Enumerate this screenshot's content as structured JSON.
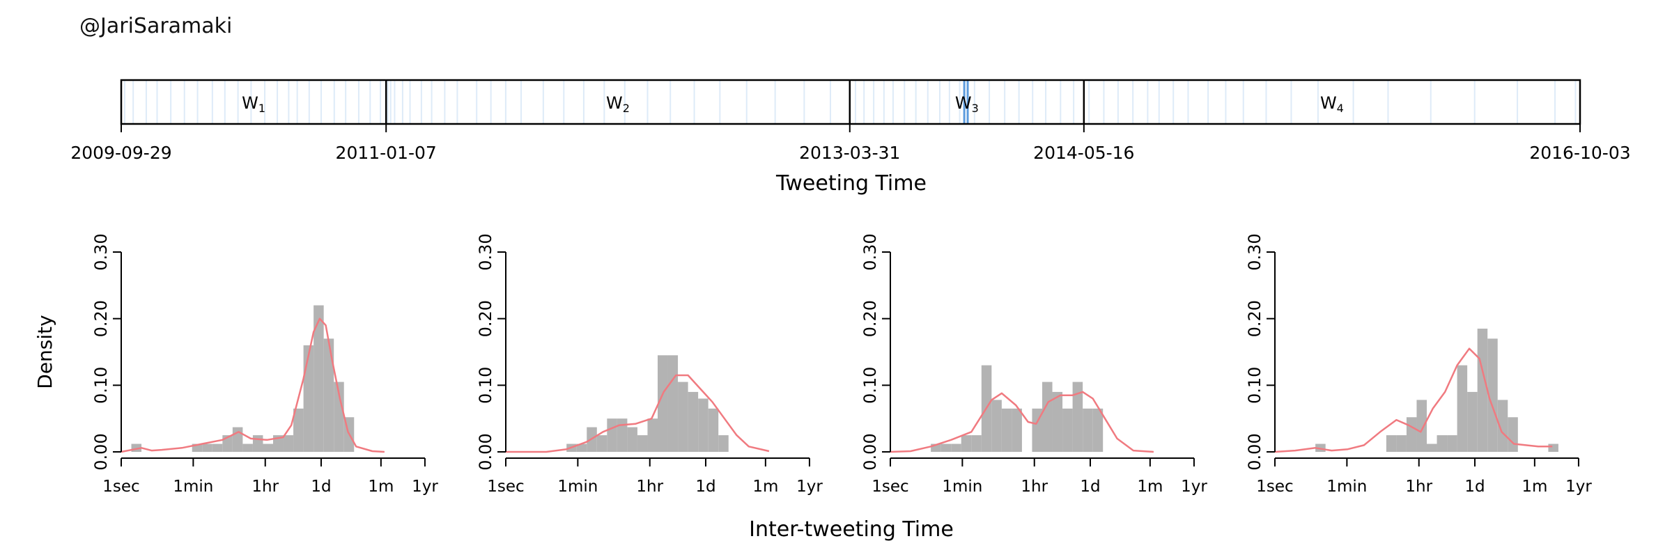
{
  "header": {
    "handle": "@JariSaramaki"
  },
  "colors": {
    "bar": "#b3b3b3",
    "density": "#f07a80",
    "tick_line": "#4a90d9",
    "axis": "#000000"
  },
  "chart_data": [
    {
      "type": "timeline",
      "xlabel": "Tweeting Time",
      "dates": [
        "2009-09-29",
        "2011-01-07",
        "2013-03-31",
        "2014-05-16",
        "2016-10-03"
      ],
      "windows": [
        {
          "label": "W",
          "sub": "1",
          "start": "2009-09-29",
          "end": "2011-01-07"
        },
        {
          "label": "W",
          "sub": "2",
          "start": "2011-01-07",
          "end": "2013-03-31"
        },
        {
          "label": "W",
          "sub": "3",
          "start": "2013-03-31",
          "end": "2014-05-16"
        },
        {
          "label": "W",
          "sub": "4",
          "start": "2014-05-16",
          "end": "2016-10-03"
        }
      ],
      "tweet_dates": [
        "2009-10-05",
        "2009-10-20",
        "2009-11-12",
        "2009-12-01",
        "2009-12-25",
        "2010-01-18",
        "2010-02-10",
        "2010-03-08",
        "2010-03-30",
        "2010-04-22",
        "2010-05-15",
        "2010-06-08",
        "2010-06-30",
        "2010-07-20",
        "2010-08-04",
        "2010-08-25",
        "2010-09-15",
        "2010-10-08",
        "2010-10-28",
        "2010-11-20",
        "2010-12-10",
        "2010-12-28",
        "2011-01-10",
        "2011-01-15",
        "2011-01-22",
        "2011-02-05",
        "2011-02-18",
        "2011-03-10",
        "2011-03-28",
        "2011-04-20",
        "2011-05-12",
        "2011-06-15",
        "2011-07-10",
        "2011-08-05",
        "2011-09-01",
        "2011-10-10",
        "2011-11-15",
        "2011-12-20",
        "2012-01-25",
        "2012-03-01",
        "2012-04-10",
        "2012-05-20",
        "2012-07-01",
        "2012-08-15",
        "2012-10-01",
        "2012-11-20",
        "2013-01-10",
        "2013-02-25",
        "2013-04-10",
        "2013-04-25",
        "2013-05-12",
        "2013-05-30",
        "2013-06-15",
        "2013-07-05",
        "2013-07-25",
        "2013-08-15",
        "2013-09-05",
        "2013-09-22",
        "2013-10-10",
        "2013-10-18",
        "2013-10-24",
        "2013-11-05",
        "2013-12-01",
        "2013-12-28",
        "2014-01-22",
        "2014-02-15",
        "2014-03-10",
        "2014-04-05",
        "2014-04-28",
        "2014-05-25",
        "2014-06-20",
        "2014-07-15",
        "2014-08-10",
        "2014-09-05",
        "2014-09-25",
        "2014-10-20",
        "2014-11-15",
        "2014-12-20",
        "2015-01-20",
        "2015-02-20",
        "2015-04-01",
        "2015-05-15",
        "2015-07-01",
        "2015-09-01",
        "2015-11-01",
        "2016-01-15",
        "2016-04-01",
        "2016-06-15",
        "2016-08-20",
        "2016-09-25"
      ]
    },
    {
      "type": "histogram",
      "window": "W1",
      "ylabel": "Density",
      "ylim": [
        0,
        0.3
      ],
      "yticks": [
        "0.00",
        "0.10",
        "0.20",
        "0.30"
      ],
      "ytick_values": [
        0,
        0.1,
        0.2,
        0.3
      ],
      "xscale": "log",
      "xticks": [
        "1sec",
        "1min",
        "1hr",
        "1d",
        "1m",
        "1yr"
      ],
      "xtick_seconds": [
        1,
        60,
        3600,
        86400,
        2592000,
        31536000
      ],
      "bin_edges_log10_sec": [
        0.25,
        0.5,
        0.75,
        1.0,
        1.25,
        1.5,
        1.75,
        2.0,
        2.25,
        2.5,
        2.75,
        3.0,
        3.25,
        3.5,
        3.75,
        4.0,
        4.25,
        4.5,
        4.75,
        5.0,
        5.25,
        5.5,
        5.75,
        6.0,
        6.25,
        6.5,
        6.75,
        7.0
      ],
      "bin_values": [
        0.012,
        0,
        0,
        0,
        0,
        0,
        0.012,
        0.012,
        0.012,
        0.025,
        0.037,
        0.012,
        0.025,
        0.012,
        0.025,
        0.025,
        0.065,
        0.16,
        0.22,
        0.17,
        0.105,
        0.052,
        0,
        0,
        0,
        0,
        0
      ],
      "density": [
        [
          0,
          0
        ],
        [
          0.5,
          0.006
        ],
        [
          0.75,
          0.002
        ],
        [
          1.0,
          0.003
        ],
        [
          1.5,
          0.006
        ],
        [
          2.0,
          0.012
        ],
        [
          2.5,
          0.018
        ],
        [
          2.9,
          0.03
        ],
        [
          3.2,
          0.02
        ],
        [
          3.6,
          0.018
        ],
        [
          4.0,
          0.022
        ],
        [
          4.2,
          0.04
        ],
        [
          4.5,
          0.11
        ],
        [
          4.75,
          0.18
        ],
        [
          4.9,
          0.2
        ],
        [
          5.05,
          0.19
        ],
        [
          5.2,
          0.14
        ],
        [
          5.4,
          0.08
        ],
        [
          5.6,
          0.03
        ],
        [
          5.8,
          0.008
        ],
        [
          6.2,
          0.001
        ],
        [
          6.5,
          0
        ]
      ]
    },
    {
      "type": "histogram",
      "window": "W2",
      "ylabel": "",
      "ylim": [
        0,
        0.3
      ],
      "yticks": [
        "0.00",
        "0.10",
        "0.20",
        "0.30"
      ],
      "ytick_values": [
        0,
        0.1,
        0.2,
        0.3
      ],
      "xscale": "log",
      "xticks": [
        "1sec",
        "1min",
        "1hr",
        "1d",
        "1m",
        "1yr"
      ],
      "xtick_seconds": [
        1,
        60,
        3600,
        86400,
        2592000,
        31536000
      ],
      "bin_edges_log10_sec": [
        1.5,
        1.75,
        2.0,
        2.25,
        2.5,
        2.75,
        3.0,
        3.25,
        3.5,
        3.75,
        4.0,
        4.25,
        4.5,
        4.75,
        5.0,
        5.25,
        5.5,
        5.75,
        6.0,
        6.25,
        6.5,
        6.75,
        7.0
      ],
      "bin_values": [
        0.012,
        0.012,
        0.037,
        0.025,
        0.05,
        0.05,
        0.037,
        0.025,
        0.05,
        0.145,
        0.145,
        0.105,
        0.09,
        0.08,
        0.065,
        0.025,
        0,
        0,
        0,
        0,
        0,
        0
      ],
      "density": [
        [
          0,
          0
        ],
        [
          1.0,
          0.0
        ],
        [
          1.5,
          0.004
        ],
        [
          2.0,
          0.015
        ],
        [
          2.4,
          0.03
        ],
        [
          2.8,
          0.04
        ],
        [
          3.2,
          0.042
        ],
        [
          3.6,
          0.05
        ],
        [
          3.9,
          0.09
        ],
        [
          4.2,
          0.115
        ],
        [
          4.5,
          0.115
        ],
        [
          4.8,
          0.095
        ],
        [
          5.1,
          0.075
        ],
        [
          5.4,
          0.05
        ],
        [
          5.7,
          0.025
        ],
        [
          6.0,
          0.008
        ],
        [
          6.5,
          0.001
        ]
      ]
    },
    {
      "type": "histogram",
      "window": "W3",
      "ylabel": "",
      "ylim": [
        0,
        0.3
      ],
      "yticks": [
        "0.00",
        "0.10",
        "0.20",
        "0.30"
      ],
      "ytick_values": [
        0,
        0.1,
        0.2,
        0.3
      ],
      "xscale": "log",
      "xticks": [
        "1sec",
        "1min",
        "1hr",
        "1d",
        "1m",
        "1yr"
      ],
      "xtick_seconds": [
        1,
        60,
        3600,
        86400,
        2592000,
        31536000
      ],
      "bin_edges_log10_sec": [
        1.0,
        1.25,
        1.5,
        1.75,
        2.0,
        2.25,
        2.5,
        2.75,
        3.0,
        3.25,
        3.5,
        3.75,
        4.0,
        4.25,
        4.5,
        4.75,
        5.0,
        5.25,
        5.5,
        5.75,
        6.0,
        6.25,
        6.5,
        6.75,
        7.0
      ],
      "bin_values": [
        0.012,
        0.012,
        0.012,
        0.025,
        0.025,
        0.13,
        0.078,
        0.065,
        0.065,
        0,
        0.065,
        0.105,
        0.09,
        0.065,
        0.105,
        0.065,
        0.065,
        0,
        0,
        0,
        0,
        0,
        0,
        0
      ],
      "density": [
        [
          0,
          0
        ],
        [
          0.5,
          0.001
        ],
        [
          1.0,
          0.008
        ],
        [
          1.5,
          0.018
        ],
        [
          2.0,
          0.03
        ],
        [
          2.5,
          0.078
        ],
        [
          2.75,
          0.088
        ],
        [
          3.1,
          0.07
        ],
        [
          3.4,
          0.045
        ],
        [
          3.6,
          0.042
        ],
        [
          3.9,
          0.075
        ],
        [
          4.2,
          0.085
        ],
        [
          4.5,
          0.085
        ],
        [
          4.75,
          0.09
        ],
        [
          5.0,
          0.08
        ],
        [
          5.3,
          0.05
        ],
        [
          5.6,
          0.02
        ],
        [
          6.0,
          0.002
        ],
        [
          6.5,
          0
        ]
      ]
    },
    {
      "type": "histogram",
      "window": "W4",
      "ylabel": "",
      "ylim": [
        0,
        0.3
      ],
      "yticks": [
        "0.00",
        "0.10",
        "0.20",
        "0.30"
      ],
      "ytick_values": [
        0,
        0.1,
        0.2,
        0.3
      ],
      "xscale": "log",
      "xticks": [
        "1sec",
        "1min",
        "1hr",
        "1d",
        "1m",
        "1yr"
      ],
      "xtick_seconds": [
        1,
        60,
        3600,
        86400,
        2592000,
        31536000
      ],
      "bin_edges_log10_sec": [
        1.0,
        1.25,
        1.5,
        1.75,
        2.0,
        2.25,
        2.5,
        2.75,
        3.0,
        3.25,
        3.5,
        3.75,
        4.0,
        4.25,
        4.5,
        4.75,
        5.0,
        5.25,
        5.5,
        5.75,
        6.0,
        6.25,
        6.5,
        6.75,
        7.0
      ],
      "bin_values": [
        0.012,
        0,
        0,
        0,
        0,
        0,
        0,
        0.025,
        0.025,
        0.052,
        0.078,
        0.012,
        0.025,
        0.025,
        0.13,
        0.09,
        0.185,
        0.17,
        0.078,
        0.052,
        0,
        0,
        0,
        0.012
      ],
      "density": [
        [
          0,
          0
        ],
        [
          0.5,
          0.002
        ],
        [
          1.0,
          0.006
        ],
        [
          1.4,
          0.002
        ],
        [
          1.8,
          0.004
        ],
        [
          2.2,
          0.01
        ],
        [
          2.6,
          0.03
        ],
        [
          3.0,
          0.048
        ],
        [
          3.3,
          0.04
        ],
        [
          3.6,
          0.03
        ],
        [
          3.9,
          0.065
        ],
        [
          4.2,
          0.09
        ],
        [
          4.5,
          0.13
        ],
        [
          4.8,
          0.155
        ],
        [
          5.05,
          0.14
        ],
        [
          5.3,
          0.08
        ],
        [
          5.6,
          0.03
        ],
        [
          5.9,
          0.012
        ],
        [
          6.2,
          0.01
        ],
        [
          6.5,
          0.008
        ],
        [
          6.85,
          0.008
        ]
      ]
    }
  ],
  "shared": {
    "xlabel": "Inter-tweeting Time"
  }
}
